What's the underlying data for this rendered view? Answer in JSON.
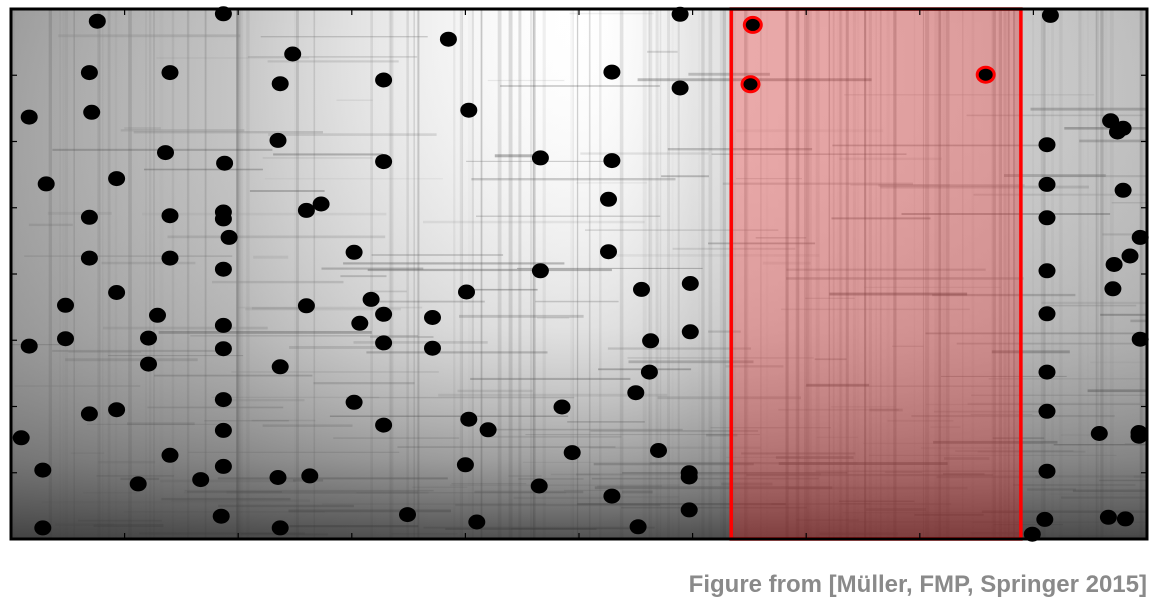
{
  "caption": "Figure from [Müller, FMP, Springer 2015]",
  "colors": {
    "background": "#ffffff",
    "frame": "#000000",
    "peak": "#000000",
    "highlight": "#ff0000",
    "highlight_fill": "#ff1a1a",
    "caption": "#8a8a8a"
  },
  "chart_data": {
    "type": "scatter",
    "title": "",
    "xlabel": "",
    "ylabel": "",
    "xlim": [
      0,
      100
    ],
    "ylim": [
      0,
      100
    ],
    "grid": false,
    "background": "spectrogram (grayscale)",
    "highlight_region": {
      "x": [
        63.4,
        88.9
      ],
      "color": "#ff0000"
    },
    "series": [
      {
        "points": [
          [
            0.9,
            19.1
          ],
          [
            1.6,
            36.4
          ],
          [
            1.6,
            79.6
          ],
          [
            2.8,
            2.1
          ],
          [
            2.8,
            13.0
          ],
          [
            3.1,
            67.0
          ],
          [
            4.8,
            37.8
          ],
          [
            4.8,
            44.1
          ],
          [
            6.9,
            23.6
          ],
          [
            6.9,
            53.0
          ],
          [
            6.9,
            60.7
          ],
          [
            6.9,
            88.0
          ],
          [
            7.1,
            80.5
          ],
          [
            7.6,
            97.7
          ],
          [
            9.3,
            24.4
          ],
          [
            9.3,
            46.5
          ],
          [
            9.3,
            68.0
          ],
          [
            11.2,
            10.4
          ],
          [
            12.1,
            33.0
          ],
          [
            12.1,
            37.9
          ],
          [
            12.9,
            42.2
          ],
          [
            13.6,
            72.9
          ],
          [
            14.0,
            15.8
          ],
          [
            14.0,
            53.0
          ],
          [
            14.0,
            61.0
          ],
          [
            14.0,
            88.0
          ],
          [
            16.7,
            11.2
          ],
          [
            18.5,
            4.3
          ],
          [
            18.7,
            13.7
          ],
          [
            18.7,
            20.5
          ],
          [
            18.7,
            26.3
          ],
          [
            18.7,
            35.9
          ],
          [
            18.7,
            40.3
          ],
          [
            18.7,
            99.1
          ],
          [
            18.7,
            50.9
          ],
          [
            18.7,
            60.4
          ],
          [
            18.7,
            61.7
          ],
          [
            18.8,
            70.9
          ],
          [
            19.2,
            56.9
          ],
          [
            23.5,
            11.6
          ],
          [
            23.5,
            75.2
          ],
          [
            23.7,
            2.1
          ],
          [
            23.7,
            32.5
          ],
          [
            23.7,
            85.9
          ],
          [
            24.8,
            91.5
          ],
          [
            26.0,
            62.0
          ],
          [
            26.0,
            44.0
          ],
          [
            26.3,
            11.9
          ],
          [
            27.3,
            63.2
          ],
          [
            30.2,
            25.8
          ],
          [
            30.2,
            54.1
          ],
          [
            30.7,
            40.7
          ],
          [
            31.7,
            45.2
          ],
          [
            32.8,
            21.5
          ],
          [
            32.8,
            42.4
          ],
          [
            32.8,
            37.0
          ],
          [
            32.8,
            71.2
          ],
          [
            32.8,
            86.6
          ],
          [
            34.9,
            4.6
          ],
          [
            37.1,
            36.0
          ],
          [
            37.1,
            41.8
          ],
          [
            38.5,
            94.3
          ],
          [
            40.0,
            14.0
          ],
          [
            40.1,
            46.6
          ],
          [
            40.3,
            22.6
          ],
          [
            40.3,
            80.9
          ],
          [
            41.0,
            3.2
          ],
          [
            42.0,
            20.6
          ],
          [
            46.5,
            10.0
          ],
          [
            46.6,
            50.6
          ],
          [
            46.6,
            71.9
          ],
          [
            48.5,
            24.9
          ],
          [
            49.4,
            16.3
          ],
          [
            52.6,
            54.2
          ],
          [
            52.6,
            64.1
          ],
          [
            52.9,
            8.1
          ],
          [
            52.9,
            71.4
          ],
          [
            52.9,
            88.1
          ],
          [
            55.0,
            27.6
          ],
          [
            55.2,
            2.3
          ],
          [
            55.5,
            47.1
          ],
          [
            56.2,
            31.5
          ],
          [
            56.3,
            37.4
          ],
          [
            57.0,
            16.7
          ],
          [
            58.9,
            85.1
          ],
          [
            58.9,
            99.0
          ],
          [
            59.7,
            5.5
          ],
          [
            59.7,
            11.7
          ],
          [
            59.7,
            12.5
          ],
          [
            59.8,
            39.1
          ],
          [
            59.8,
            48.2
          ],
          [
            65.1,
            85.8
          ],
          [
            65.3,
            97.0
          ],
          [
            85.8,
            87.6
          ],
          [
            89.9,
            0.9
          ],
          [
            91.0,
            3.7
          ],
          [
            91.2,
            12.8
          ],
          [
            91.2,
            24.1
          ],
          [
            91.2,
            31.5
          ],
          [
            91.2,
            42.5
          ],
          [
            91.2,
            50.6
          ],
          [
            91.2,
            60.6
          ],
          [
            91.2,
            66.9
          ],
          [
            91.2,
            74.4
          ],
          [
            91.5,
            98.8
          ],
          [
            95.8,
            19.9
          ],
          [
            96.6,
            4.1
          ],
          [
            96.8,
            78.9
          ],
          [
            97.0,
            47.2
          ],
          [
            97.1,
            51.8
          ],
          [
            97.4,
            76.8
          ],
          [
            97.9,
            65.8
          ],
          [
            97.9,
            77.5
          ],
          [
            98.1,
            3.8
          ],
          [
            98.5,
            53.4
          ],
          [
            99.3,
            19.4
          ],
          [
            99.3,
            20.1
          ],
          [
            99.4,
            37.7
          ],
          [
            99.4,
            56.9
          ]
        ]
      }
    ]
  }
}
